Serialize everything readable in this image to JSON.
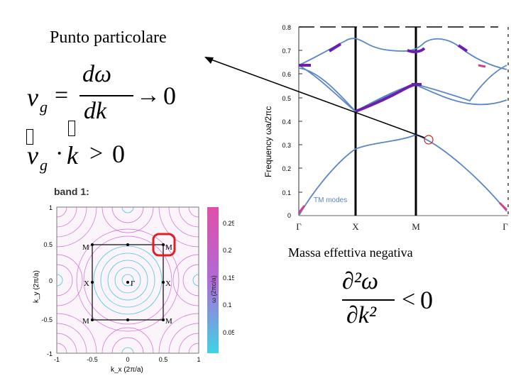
{
  "slide": {
    "annotation_left": "Punto particolare",
    "annotation_right": "Massa effettiva negativa"
  },
  "equations": {
    "group_velocity": {
      "lhs": "v",
      "subscript": "g",
      "equals": "=",
      "numerator": "dω",
      "denominator": "dk",
      "arrow": "→",
      "limit": "0"
    },
    "product": {
      "lhs": "v",
      "subscript": "g",
      "dot": "·",
      "k": "k",
      "relation": ">",
      "value": "0"
    },
    "negative_mass": {
      "numerator": "∂²ω",
      "denominator": "∂k²",
      "relation": "<",
      "value": "0"
    }
  },
  "band_diagram": {
    "ylabel": "Frequency  ωa/2πc",
    "yticks": [
      "0",
      "0.1",
      "0.2",
      "0.3",
      "0.4",
      "0.5",
      "0.6",
      "0.7",
      "0.8"
    ],
    "xticks": [
      "Γ",
      "X",
      "M",
      "Γ"
    ],
    "legend": "TM modes",
    "colors": {
      "band": "#5a86c6",
      "highlight": "#6a1fb0",
      "marker": "#cc2222",
      "pink": "#cc4488"
    }
  },
  "brillouin_map": {
    "title": "band 1:",
    "ylabel": "k_y (2π/a)",
    "xlabel": "k_x (2π/a)",
    "xticks": [
      "-1",
      "-0.5",
      "0",
      "0.5",
      "1"
    ],
    "yticks": [
      "1",
      "0.5",
      "0",
      "-0.5",
      "-1"
    ],
    "points": {
      "M": "M",
      "X": "X",
      "Gamma": "Γ"
    },
    "colorbar_label": "ω (2πc/a)",
    "colorbar_ticks": [
      "0.25",
      "0.2",
      "0.15",
      "0.1",
      "0.05"
    ],
    "colors": {
      "contour_high": "#d26ad2",
      "contour_low": "#45c4de",
      "marker": "#e02020"
    }
  }
}
